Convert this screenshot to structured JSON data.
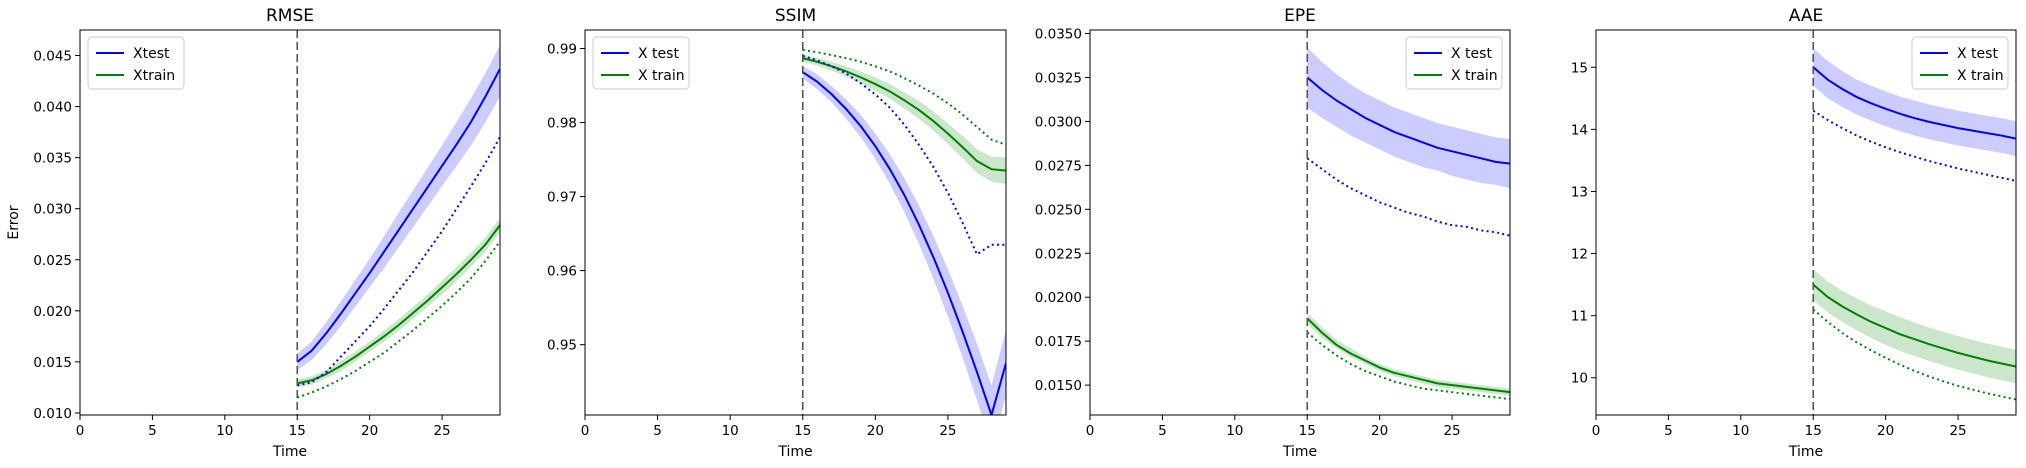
{
  "figure": {
    "ylabel_shared": "Error"
  },
  "chart_data": [
    {
      "type": "line",
      "title": "RMSE",
      "xlabel": "Time",
      "ylabel": "Error",
      "xlim": [
        0,
        29
      ],
      "ylim": [
        0.0098,
        0.0475
      ],
      "xticks": [
        0,
        5,
        10,
        15,
        20,
        25
      ],
      "yticks": [
        0.01,
        0.015,
        0.02,
        0.025,
        0.03,
        0.035,
        0.04,
        0.045
      ],
      "tick_decimals": 3,
      "vline_x": 15,
      "legend": {
        "placement": "top-left",
        "entries": [
          "Xtest",
          "Xtrain"
        ]
      },
      "x": [
        15,
        16,
        17,
        18,
        19,
        20,
        21,
        22,
        23,
        24,
        25,
        26,
        27,
        28,
        29
      ],
      "series": [
        {
          "name": "Xtest",
          "color": "#0000ff",
          "style": "solid",
          "values": [
            0.015,
            0.0161,
            0.0178,
            0.0197,
            0.0217,
            0.0237,
            0.0258,
            0.0279,
            0.03,
            0.0321,
            0.0342,
            0.0363,
            0.0385,
            0.041,
            0.0437
          ],
          "band_low": [
            0.0142,
            0.0152,
            0.0167,
            0.0185,
            0.0204,
            0.0223,
            0.0242,
            0.0262,
            0.0282,
            0.0302,
            0.0322,
            0.0342,
            0.0362,
            0.0385,
            0.041
          ],
          "band_high": [
            0.0158,
            0.017,
            0.0189,
            0.0209,
            0.023,
            0.0251,
            0.0273,
            0.0296,
            0.0318,
            0.034,
            0.0362,
            0.0385,
            0.0408,
            0.0433,
            0.046
          ]
        },
        {
          "name": "Xtrain",
          "color": "#008000",
          "style": "solid",
          "values": [
            0.0129,
            0.0132,
            0.0138,
            0.0146,
            0.0155,
            0.0165,
            0.0175,
            0.0186,
            0.0198,
            0.021,
            0.0223,
            0.0236,
            0.025,
            0.0265,
            0.0284
          ],
          "band_low": [
            0.0125,
            0.0128,
            0.0134,
            0.0141,
            0.015,
            0.016,
            0.017,
            0.018,
            0.0192,
            0.0204,
            0.0216,
            0.0229,
            0.0243,
            0.0258,
            0.0277
          ],
          "band_high": [
            0.0133,
            0.0136,
            0.0142,
            0.0151,
            0.016,
            0.017,
            0.0181,
            0.0192,
            0.0204,
            0.0216,
            0.023,
            0.0243,
            0.0257,
            0.0272,
            0.0291
          ]
        },
        {
          "color": "#0000ff",
          "style": "dotted",
          "values": [
            0.0127,
            0.013,
            0.014,
            0.0155,
            0.017,
            0.0185,
            0.0202,
            0.022,
            0.0238,
            0.0258,
            0.0278,
            0.03,
            0.0322,
            0.0345,
            0.037
          ]
        },
        {
          "color": "#008000",
          "style": "dotted",
          "values": [
            0.0115,
            0.012,
            0.0126,
            0.0133,
            0.0141,
            0.015,
            0.0159,
            0.017,
            0.0181,
            0.0193,
            0.0205,
            0.0218,
            0.0232,
            0.0249,
            0.0268
          ]
        }
      ]
    },
    {
      "type": "line",
      "title": "SSIM",
      "xlabel": "Time",
      "ylabel": "",
      "xlim": [
        0,
        29
      ],
      "ylim": [
        0.9405,
        0.9925
      ],
      "xticks": [
        0,
        5,
        10,
        15,
        20,
        25
      ],
      "yticks": [
        0.95,
        0.96,
        0.97,
        0.98,
        0.99
      ],
      "tick_decimals": 2,
      "vline_x": 15,
      "legend": {
        "placement": "top-left",
        "entries": [
          "X test",
          "X train"
        ]
      },
      "x": [
        15,
        16,
        17,
        18,
        19,
        20,
        21,
        22,
        23,
        24,
        25,
        26,
        27,
        28,
        29
      ],
      "series": [
        {
          "name": "X test",
          "color": "#0000ff",
          "style": "solid",
          "values": [
            0.9868,
            0.9855,
            0.9838,
            0.9818,
            0.9795,
            0.9768,
            0.9737,
            0.9702,
            0.9662,
            0.9618,
            0.957,
            0.9518,
            0.9463,
            0.9405,
            0.9475
          ],
          "band_low": [
            0.986,
            0.9845,
            0.9827,
            0.9805,
            0.978,
            0.9751,
            0.9717,
            0.9679,
            0.9636,
            0.9589,
            0.9538,
            0.9483,
            0.9425,
            0.9365,
            0.943
          ],
          "band_high": [
            0.9876,
            0.9865,
            0.9849,
            0.9831,
            0.981,
            0.9785,
            0.9757,
            0.9725,
            0.9688,
            0.9647,
            0.9602,
            0.9553,
            0.9501,
            0.9445,
            0.952
          ]
        },
        {
          "name": "X train",
          "color": "#008000",
          "style": "solid",
          "values": [
            0.9887,
            0.9882,
            0.9876,
            0.9869,
            0.9861,
            0.9852,
            0.9842,
            0.983,
            0.9817,
            0.9802,
            0.9785,
            0.9767,
            0.9748,
            0.9737,
            0.9735
          ],
          "band_low": [
            0.9882,
            0.9877,
            0.987,
            0.9862,
            0.9853,
            0.9843,
            0.9832,
            0.9819,
            0.9805,
            0.9789,
            0.9771,
            0.9752,
            0.9732,
            0.972,
            0.9717
          ],
          "band_high": [
            0.9892,
            0.9887,
            0.9882,
            0.9876,
            0.9869,
            0.9861,
            0.9852,
            0.9841,
            0.9829,
            0.9815,
            0.9799,
            0.9782,
            0.9764,
            0.9754,
            0.9753
          ]
        },
        {
          "color": "#0000ff",
          "style": "dotted",
          "values": [
            0.989,
            0.9884,
            0.9876,
            0.9866,
            0.9853,
            0.9838,
            0.982,
            0.9797,
            0.977,
            0.974,
            0.9705,
            0.9665,
            0.9622,
            0.9635,
            0.9635
          ]
        },
        {
          "color": "#008000",
          "style": "dotted",
          "values": [
            0.9898,
            0.9895,
            0.9891,
            0.9887,
            0.9882,
            0.9876,
            0.9869,
            0.986,
            0.985,
            0.9839,
            0.9826,
            0.9811,
            0.9794,
            0.9777,
            0.977
          ]
        }
      ]
    },
    {
      "type": "line",
      "title": "EPE",
      "xlabel": "Time",
      "ylabel": "",
      "xlim": [
        0,
        29
      ],
      "ylim": [
        0.0133,
        0.0352
      ],
      "xticks": [
        0,
        5,
        10,
        15,
        20,
        25
      ],
      "yticks": [
        0.015,
        0.0175,
        0.02,
        0.0225,
        0.025,
        0.0275,
        0.03,
        0.0325,
        0.035
      ],
      "tick_decimals": 4,
      "vline_x": 15,
      "legend": {
        "placement": "top-right",
        "entries": [
          "X test",
          "X train"
        ]
      },
      "x": [
        15,
        16,
        17,
        18,
        19,
        20,
        21,
        22,
        23,
        24,
        25,
        26,
        27,
        28,
        29
      ],
      "series": [
        {
          "name": "X test",
          "color": "#0000ff",
          "style": "solid",
          "values": [
            0.0325,
            0.0318,
            0.0312,
            0.0307,
            0.0302,
            0.0298,
            0.0294,
            0.0291,
            0.0288,
            0.0285,
            0.0283,
            0.0281,
            0.0279,
            0.0277,
            0.0276
          ],
          "band_low": [
            0.0308,
            0.0302,
            0.0297,
            0.0292,
            0.0288,
            0.0284,
            0.028,
            0.0277,
            0.0274,
            0.0272,
            0.0269,
            0.0267,
            0.0265,
            0.0264,
            0.0262
          ],
          "band_high": [
            0.0342,
            0.0334,
            0.0327,
            0.0321,
            0.0316,
            0.0312,
            0.0308,
            0.0305,
            0.0302,
            0.0299,
            0.0297,
            0.0295,
            0.0293,
            0.0291,
            0.029
          ]
        },
        {
          "name": "X train",
          "color": "#008000",
          "style": "solid",
          "values": [
            0.0188,
            0.018,
            0.0173,
            0.0168,
            0.0164,
            0.016,
            0.0157,
            0.0155,
            0.0153,
            0.0151,
            0.015,
            0.0149,
            0.0148,
            0.0147,
            0.0146
          ],
          "band_low": [
            0.0185,
            0.0177,
            0.0171,
            0.0166,
            0.0162,
            0.0158,
            0.0155,
            0.0153,
            0.0151,
            0.0149,
            0.0148,
            0.0147,
            0.0146,
            0.0145,
            0.0144
          ],
          "band_high": [
            0.0191,
            0.0183,
            0.0176,
            0.0171,
            0.0166,
            0.0162,
            0.0159,
            0.0157,
            0.0155,
            0.0153,
            0.0152,
            0.0151,
            0.015,
            0.0149,
            0.0148
          ]
        },
        {
          "color": "#0000ff",
          "style": "dotted",
          "values": [
            0.0279,
            0.0273,
            0.0267,
            0.0262,
            0.0258,
            0.0254,
            0.0251,
            0.0248,
            0.0246,
            0.0243,
            0.0241,
            0.024,
            0.0238,
            0.0237,
            0.0235
          ]
        },
        {
          "color": "#008000",
          "style": "dotted",
          "values": [
            0.018,
            0.0173,
            0.0167,
            0.0162,
            0.0158,
            0.0155,
            0.0152,
            0.015,
            0.0148,
            0.0147,
            0.0146,
            0.0145,
            0.0144,
            0.0143,
            0.0142
          ]
        }
      ]
    },
    {
      "type": "line",
      "title": "AAE",
      "xlabel": "Time",
      "ylabel": "",
      "xlim": [
        0,
        29
      ],
      "ylim": [
        9.4,
        15.6
      ],
      "xticks": [
        0,
        5,
        10,
        15,
        20,
        25
      ],
      "yticks": [
        10,
        11,
        12,
        13,
        14,
        15
      ],
      "tick_decimals": 0,
      "vline_x": 15,
      "legend": {
        "placement": "top-right",
        "entries": [
          "X test",
          "X train"
        ]
      },
      "x": [
        15,
        16,
        17,
        18,
        19,
        20,
        21,
        22,
        23,
        24,
        25,
        26,
        27,
        28,
        29
      ],
      "series": [
        {
          "name": "X test",
          "color": "#0000ff",
          "style": "solid",
          "values": [
            15.0,
            14.8,
            14.65,
            14.52,
            14.42,
            14.33,
            14.25,
            14.18,
            14.12,
            14.07,
            14.02,
            13.98,
            13.94,
            13.9,
            13.85
          ],
          "band_low": [
            14.7,
            14.5,
            14.36,
            14.24,
            14.14,
            14.05,
            13.97,
            13.9,
            13.84,
            13.79,
            13.74,
            13.7,
            13.66,
            13.62,
            13.57
          ],
          "band_high": [
            15.3,
            15.1,
            14.94,
            14.8,
            14.7,
            14.61,
            14.53,
            14.46,
            14.4,
            14.35,
            14.3,
            14.26,
            14.22,
            14.18,
            14.13
          ]
        },
        {
          "name": "X train",
          "color": "#008000",
          "style": "solid",
          "values": [
            11.5,
            11.3,
            11.15,
            11.02,
            10.9,
            10.8,
            10.7,
            10.62,
            10.54,
            10.47,
            10.4,
            10.34,
            10.28,
            10.23,
            10.18
          ],
          "band_low": [
            11.25,
            11.05,
            10.9,
            10.76,
            10.64,
            10.53,
            10.43,
            10.35,
            10.27,
            10.2,
            10.13,
            10.07,
            10.01,
            9.96,
            9.91
          ],
          "band_high": [
            11.75,
            11.55,
            11.4,
            11.28,
            11.16,
            11.07,
            10.97,
            10.89,
            10.81,
            10.74,
            10.67,
            10.61,
            10.55,
            10.5,
            10.45
          ]
        },
        {
          "color": "#0000ff",
          "style": "dotted",
          "values": [
            14.3,
            14.15,
            14.02,
            13.9,
            13.8,
            13.71,
            13.63,
            13.56,
            13.49,
            13.43,
            13.37,
            13.32,
            13.27,
            13.22,
            13.17
          ]
        },
        {
          "color": "#008000",
          "style": "dotted",
          "values": [
            11.1,
            10.9,
            10.72,
            10.57,
            10.44,
            10.32,
            10.21,
            10.11,
            10.02,
            9.94,
            9.87,
            9.81,
            9.75,
            9.7,
            9.65
          ]
        }
      ]
    }
  ]
}
